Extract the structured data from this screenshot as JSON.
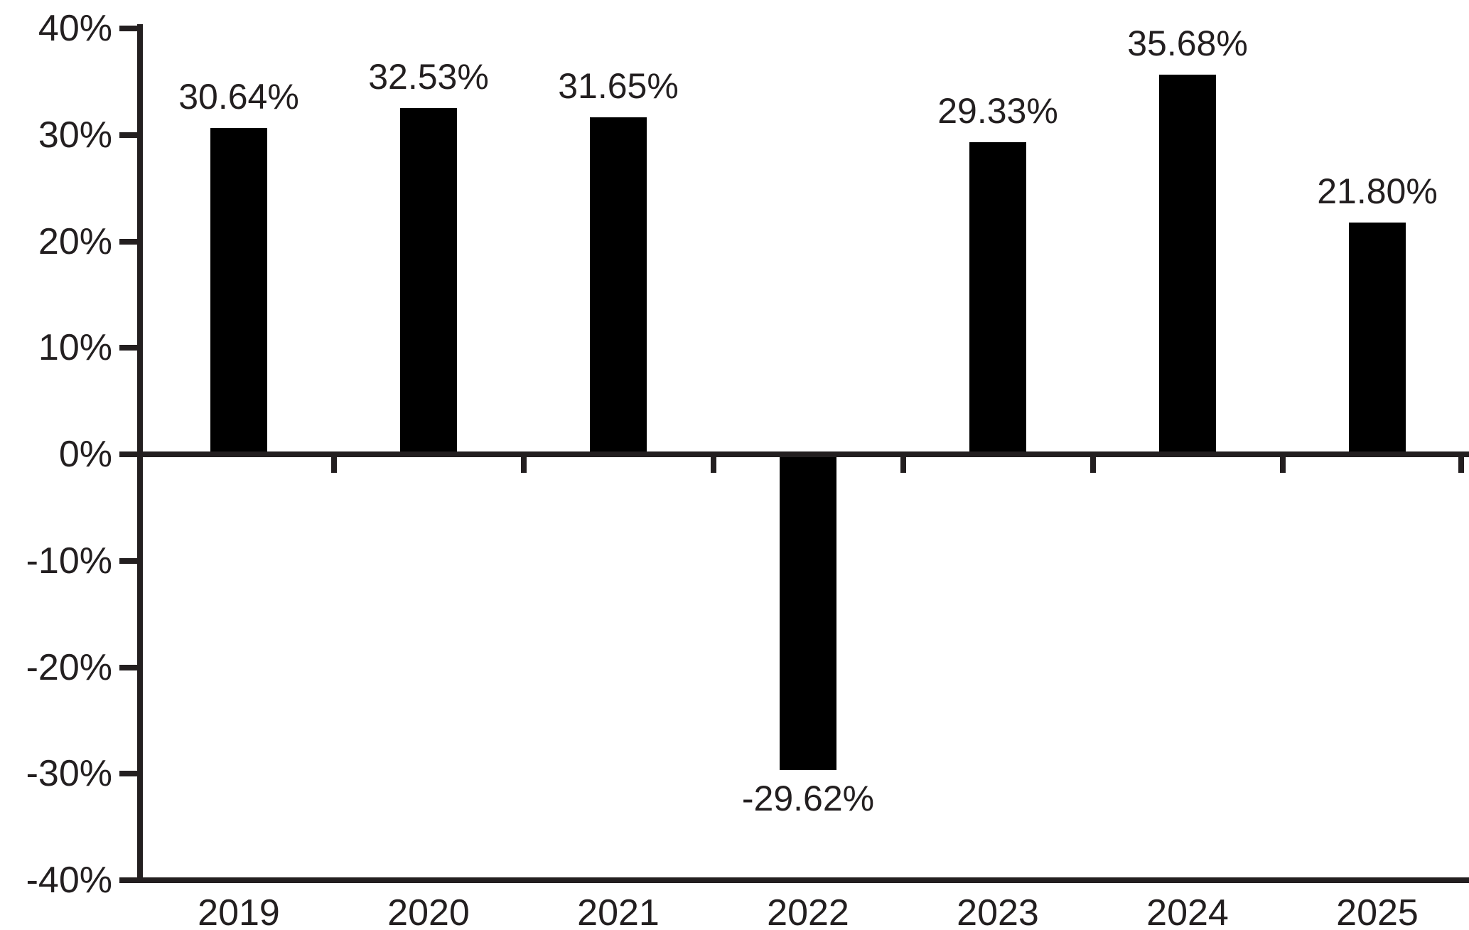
{
  "chart_data": {
    "type": "bar",
    "title": "",
    "xlabel": "",
    "ylabel": "",
    "categories": [
      "2019",
      "2020",
      "2021",
      "2022",
      "2023",
      "2024",
      "2025"
    ],
    "values": [
      30.64,
      32.53,
      31.65,
      -29.62,
      29.33,
      35.68,
      21.8
    ],
    "value_labels": [
      "30.64%",
      "32.53%",
      "31.65%",
      "-29.62%",
      "29.33%",
      "35.68%",
      "21.80%"
    ],
    "y_tick_labels": [
      "40%",
      "30%",
      "20%",
      "10%",
      "0%",
      "-10%",
      "-20%",
      "-30%",
      "-40%"
    ],
    "y_tick_values": [
      40,
      30,
      20,
      10,
      0,
      -10,
      -20,
      -30,
      -40
    ],
    "ylim": [
      -40,
      40
    ],
    "grid": false,
    "legend": null,
    "zero_baseline": true,
    "bar_color": "#000000",
    "axis_color": "#231f20",
    "text_color": "#231f20",
    "background_color": "#ffffff"
  }
}
